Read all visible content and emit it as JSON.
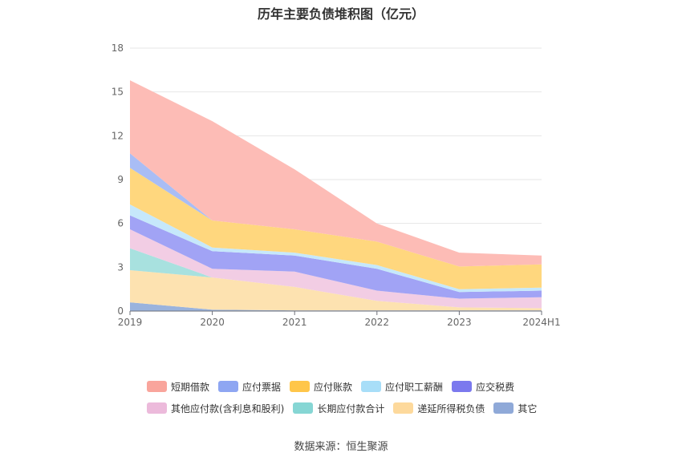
{
  "title": "历年主要负债堆积图（亿元）",
  "source": "数据来源：恒生聚源",
  "chart_data": {
    "type": "area",
    "stacked": true,
    "title": "历年主要负债堆积图（亿元）",
    "xlabel": "",
    "ylabel": "",
    "categories": [
      "2019",
      "2020",
      "2021",
      "2022",
      "2023",
      "2024H1"
    ],
    "ylim": [
      0,
      18
    ],
    "yticks": [
      0,
      3,
      6,
      9,
      12,
      15,
      18
    ],
    "grid": true,
    "legend_position": "bottom",
    "series": [
      {
        "name": "其它",
        "color": "#9ab3dd",
        "values": [
          0.6,
          0.1,
          0.05,
          0.05,
          0.05,
          0.05
        ]
      },
      {
        "name": "递延所得税负债",
        "color": "#fde2b0",
        "values": [
          2.2,
          2.2,
          1.6,
          0.65,
          0.2,
          0.15
        ]
      },
      {
        "name": "长期应付款合计",
        "color": "#a8e1df",
        "values": [
          1.5,
          0.0,
          0.0,
          0.0,
          0.0,
          0.0
        ]
      },
      {
        "name": "其他应付款(含利息和股利)",
        "color": "#f2cde4",
        "values": [
          1.3,
          0.6,
          1.05,
          0.7,
          0.6,
          0.75
        ]
      },
      {
        "name": "应交税费",
        "color": "#a1a3f5",
        "values": [
          0.95,
          1.2,
          1.1,
          1.5,
          0.45,
          0.45
        ]
      },
      {
        "name": "应付职工薪酬",
        "color": "#c6e8fb",
        "values": [
          0.75,
          0.25,
          0.2,
          0.25,
          0.2,
          0.2
        ]
      },
      {
        "name": "应付账款",
        "color": "#ffd77e",
        "values": [
          2.5,
          1.85,
          1.6,
          1.6,
          1.55,
          1.6
        ]
      },
      {
        "name": "应付票据",
        "color": "#a9bdf5",
        "values": [
          1.0,
          0.0,
          0.0,
          0.0,
          0.0,
          0.0
        ]
      },
      {
        "name": "短期借款",
        "color": "#fdbcb6",
        "values": [
          5.0,
          6.8,
          4.1,
          1.25,
          0.95,
          0.6
        ]
      }
    ]
  },
  "legend": {
    "rows": [
      [
        {
          "label": "短期借款",
          "color": "#f9a59c"
        },
        {
          "label": "应付票据",
          "color": "#8ea6f2"
        },
        {
          "label": "应付账款",
          "color": "#ffc64a"
        },
        {
          "label": "应付职工薪酬",
          "color": "#a8def8"
        },
        {
          "label": "应交税费",
          "color": "#7b79ee"
        }
      ],
      [
        {
          "label": "其他应付款(含利息和股利)",
          "color": "#ecbadb"
        },
        {
          "label": "长期应付款合计",
          "color": "#86d6d4"
        },
        {
          "label": "递延所得税负债",
          "color": "#fdd99c"
        },
        {
          "label": "其它",
          "color": "#8fa9d8"
        }
      ]
    ]
  }
}
